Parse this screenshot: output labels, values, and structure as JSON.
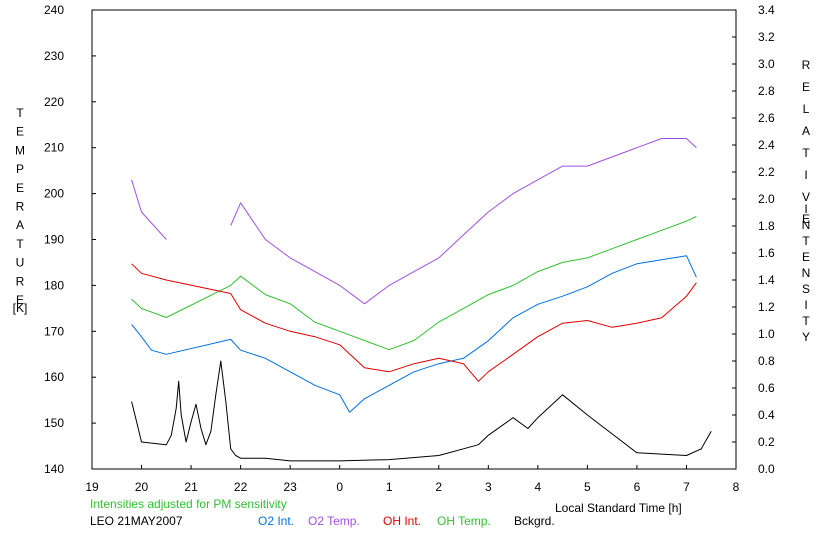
{
  "chart_data": {
    "type": "line",
    "left_axis": {
      "label_letters": [
        "T",
        "E",
        "M",
        "P",
        "E",
        "R",
        "A",
        "T",
        "U",
        "R",
        "E"
      ],
      "unit": "[K]",
      "ylim": [
        140,
        240
      ],
      "ticks": [
        "140",
        "150",
        "160",
        "170",
        "180",
        "190",
        "200",
        "210",
        "220",
        "230",
        "240"
      ]
    },
    "right_axis": {
      "label_letters_1": [
        "R",
        "E",
        "L",
        "A",
        "T",
        "I",
        "V",
        "E"
      ],
      "label_letters_2": [
        "I",
        "N",
        "T",
        "E",
        "N",
        "S",
        "I",
        "T",
        "Y"
      ],
      "ylim": [
        0.0,
        3.4
      ],
      "ticks": [
        "0.0",
        "0.2",
        "0.4",
        "0.6",
        "0.8",
        "1.0",
        "1.2",
        "1.4",
        "1.6",
        "1.8",
        "2.0",
        "2.2",
        "2.4",
        "2.6",
        "2.8",
        "3.0",
        "3.2",
        "3.4"
      ]
    },
    "x_axis": {
      "label": "Local Standard Time [h]",
      "range_hours_since_19": [
        0,
        13
      ],
      "ticks": [
        "19",
        "20",
        "21",
        "22",
        "23",
        "0",
        "1",
        "2",
        "3",
        "4",
        "5",
        "6",
        "7",
        "8"
      ]
    },
    "note": "Intensities adjusted for PM sensitivity",
    "station_label": "LEO 21MAY2007",
    "legend": [
      {
        "name": "O2 Int.",
        "color": "#0070e0"
      },
      {
        "name": "O2 Temp.",
        "color": "#a050e0"
      },
      {
        "name": "OH Int.",
        "color": "#e00000"
      },
      {
        "name": "OH Temp.",
        "color": "#30c030"
      },
      {
        "name": "Bckgrd.",
        "color": "#000000"
      }
    ],
    "series": [
      {
        "name": "O2 Temp.",
        "axis": "left",
        "color": "#a050e0",
        "x": [
          0.8,
          1.0,
          1.5,
          1.6,
          2.8,
          3.0,
          3.5,
          4.0,
          4.5,
          5.0,
          5.5,
          6.0,
          6.5,
          7.0,
          7.5,
          8.0,
          8.5,
          9.0,
          9.5,
          10.0,
          10.5,
          11.0,
          11.5,
          12.0,
          12.2
        ],
        "y": [
          203,
          196,
          190,
          null,
          193,
          198,
          190,
          186,
          183,
          180,
          176,
          180,
          183,
          186,
          191,
          196,
          200,
          203,
          206,
          206,
          208,
          210,
          212,
          212,
          210
        ]
      },
      {
        "name": "OH Temp.",
        "axis": "left",
        "color": "#30c030",
        "x": [
          0.8,
          1.0,
          1.5,
          2.8,
          3.0,
          3.5,
          4.0,
          4.5,
          5.0,
          5.5,
          6.0,
          6.5,
          7.0,
          7.5,
          8.0,
          8.5,
          9.0,
          9.5,
          10.0,
          10.5,
          11.0,
          11.5,
          12.0,
          12.2
        ],
        "y": [
          177,
          175,
          173,
          180,
          182,
          178,
          176,
          172,
          170,
          168,
          166,
          168,
          172,
          175,
          178,
          180,
          183,
          185,
          186,
          188,
          190,
          192,
          194,
          195
        ]
      },
      {
        "name": "O2 Int.",
        "axis": "right",
        "color": "#0070e0",
        "x": [
          0.8,
          1.0,
          1.2,
          1.5,
          2.8,
          3.0,
          3.5,
          4.0,
          4.5,
          5.0,
          5.2,
          5.5,
          6.0,
          6.5,
          7.0,
          7.5,
          8.0,
          8.5,
          9.0,
          9.5,
          10.0,
          10.5,
          11.0,
          11.5,
          12.0,
          12.2
        ],
        "y": [
          1.07,
          0.98,
          0.88,
          0.85,
          0.96,
          0.88,
          0.82,
          0.72,
          0.62,
          0.55,
          0.42,
          0.52,
          0.62,
          0.72,
          0.78,
          0.82,
          0.95,
          1.12,
          1.22,
          1.28,
          1.35,
          1.45,
          1.52,
          1.55,
          1.58,
          1.42
        ]
      },
      {
        "name": "OH Int.",
        "axis": "right",
        "color": "#e00000",
        "x": [
          0.8,
          1.0,
          1.5,
          2.8,
          3.0,
          3.5,
          4.0,
          4.5,
          5.0,
          5.5,
          6.0,
          6.5,
          7.0,
          7.5,
          7.8,
          8.0,
          8.5,
          9.0,
          9.5,
          10.0,
          10.5,
          11.0,
          11.5,
          12.0,
          12.2
        ],
        "y": [
          1.52,
          1.45,
          1.4,
          1.3,
          1.18,
          1.08,
          1.02,
          0.98,
          0.92,
          0.75,
          0.72,
          0.78,
          0.82,
          0.78,
          0.65,
          0.72,
          0.85,
          0.98,
          1.08,
          1.1,
          1.05,
          1.08,
          1.12,
          1.28,
          1.38
        ]
      },
      {
        "name": "Bckgrd.",
        "axis": "right",
        "color": "#000000",
        "x": [
          0.8,
          0.9,
          1.0,
          1.5,
          1.6,
          1.7,
          1.75,
          1.8,
          1.9,
          2.0,
          2.1,
          2.2,
          2.3,
          2.4,
          2.5,
          2.6,
          2.7,
          2.8,
          2.9,
          3.0,
          3.5,
          4.0,
          5.0,
          6.0,
          7.0,
          7.5,
          7.8,
          8.0,
          8.5,
          8.8,
          9.0,
          9.5,
          10.0,
          11.0,
          12.0,
          12.3,
          12.5
        ],
        "y": [
          0.5,
          0.35,
          0.2,
          0.18,
          0.25,
          0.45,
          0.65,
          0.4,
          0.2,
          0.35,
          0.48,
          0.3,
          0.18,
          0.28,
          0.55,
          0.8,
          0.5,
          0.15,
          0.1,
          0.08,
          0.08,
          0.06,
          0.06,
          0.07,
          0.1,
          0.15,
          0.18,
          0.25,
          0.38,
          0.3,
          0.38,
          0.55,
          0.4,
          0.12,
          0.1,
          0.15,
          0.28
        ]
      }
    ]
  }
}
